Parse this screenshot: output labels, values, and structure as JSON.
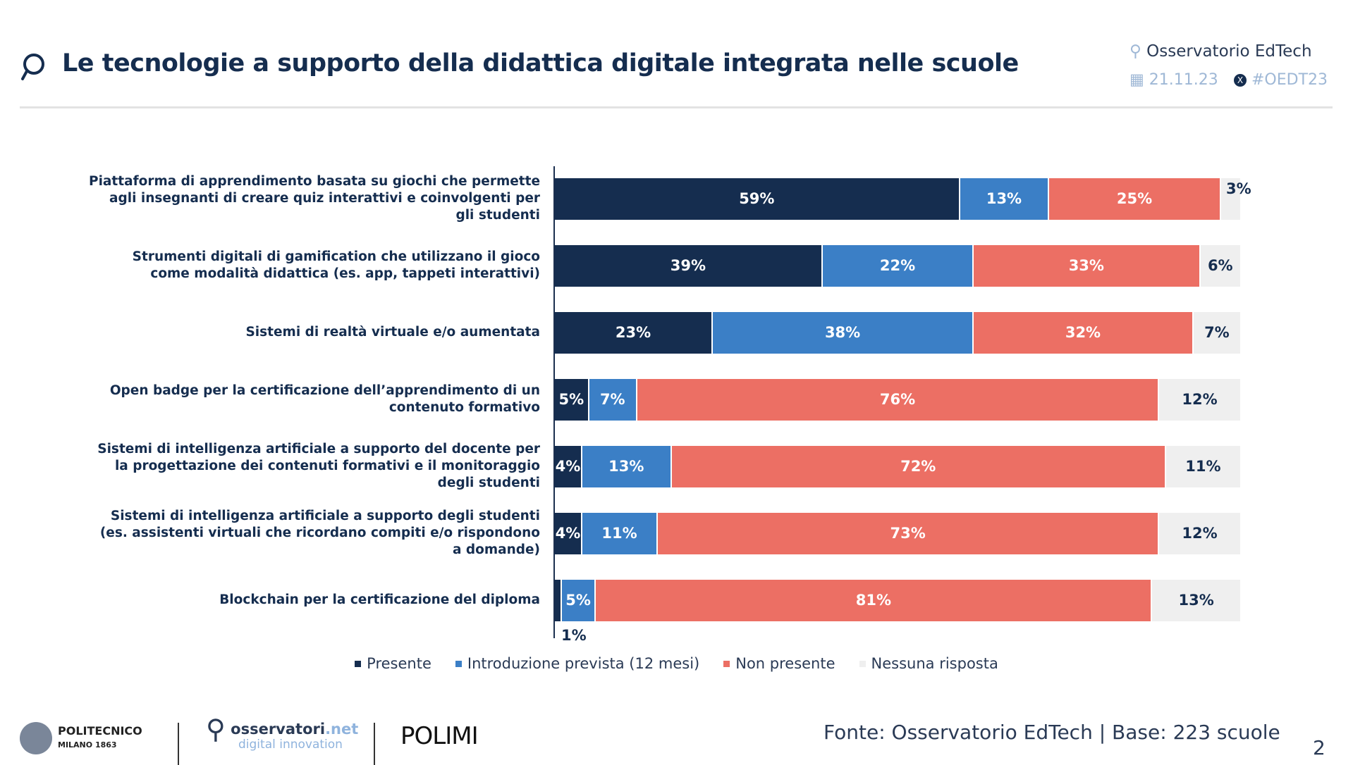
{
  "header": {
    "title": "Le tecnologie a supporto della didattica digitale integrata nelle scuole",
    "brand": "Osservatorio EdTech",
    "date": "21.11.23",
    "hashtag": "#OEDT23"
  },
  "chart_data": {
    "type": "bar",
    "orientation": "horizontal-stacked-100",
    "categories": [
      "Piattaforma di apprendimento basata su giochi che permette agli insegnanti di creare quiz interattivi e coinvolgenti per gli studenti",
      "Strumenti digitali di gamification che utilizzano il gioco come modalità didattica (es. app, tappeti interattivi)",
      "Sistemi di realtà virtuale e/o aumentata",
      "Open badge per la certificazione dell’apprendimento di un contenuto formativo",
      "Sistemi di intelligenza artificiale a supporto del docente per la progettazione dei contenuti formativi e il monitoraggio degli studenti",
      "Sistemi di intelligenza artificiale a supporto degli studenti (es. assistenti virtuali che ricordano compiti e/o rispondono a domande)",
      "Blockchain per la certificazione del diploma"
    ],
    "series": [
      {
        "name": "Presente",
        "color": "#152d4f",
        "values": [
          59,
          39,
          23,
          5,
          4,
          4,
          1
        ]
      },
      {
        "name": "Introduzione prevista (12 mesi)",
        "color": "#3b7fc6",
        "values": [
          13,
          22,
          38,
          7,
          13,
          11,
          5
        ]
      },
      {
        "name": "Non presente",
        "color": "#ec6f64",
        "values": [
          25,
          33,
          32,
          76,
          72,
          73,
          81
        ]
      },
      {
        "name": "Nessuna risposta",
        "color": "#efefef",
        "values": [
          3,
          6,
          7,
          12,
          11,
          12,
          13
        ]
      }
    ],
    "unit": "%",
    "xlim": [
      0,
      100
    ],
    "legend": "bottom"
  },
  "footer": {
    "source": "Fonte: Osservatorio EdTech | Base: 223 scuole",
    "page": "2",
    "logos": [
      "POLITECNICO MILANO 1863",
      "osservatori.net digital innovation",
      "POLIMI GRADUATE SCHOOL OF MANAGEMENT"
    ]
  }
}
